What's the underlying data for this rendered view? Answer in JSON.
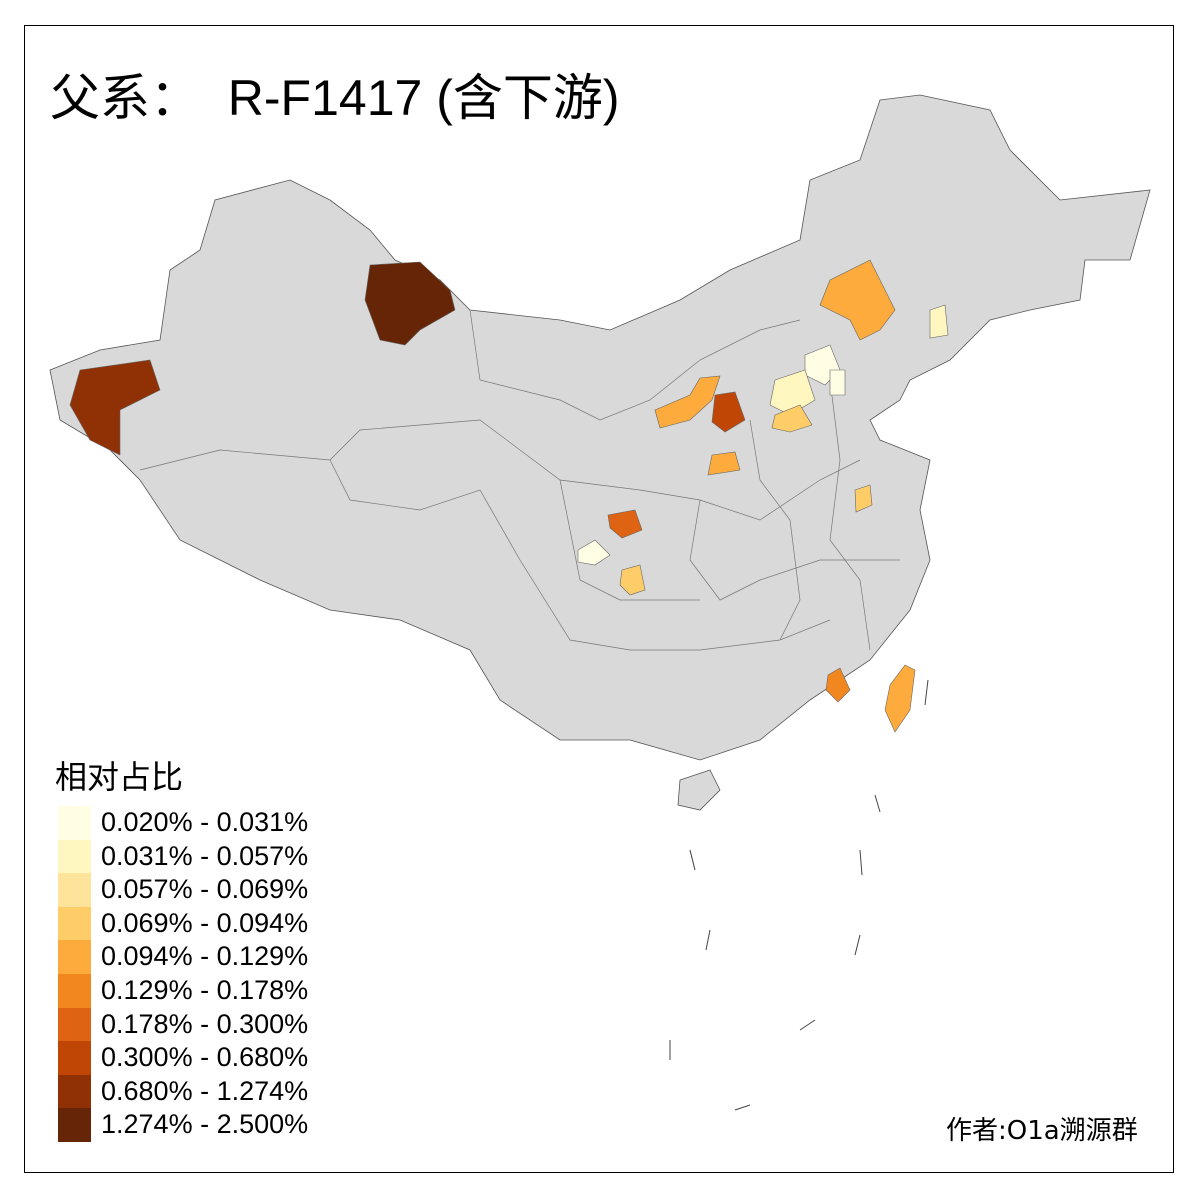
{
  "title": "父系：  R-F1417 (含下游)",
  "legend": {
    "title": "相对占比",
    "items": [
      {
        "label": "0.020% - 0.031%",
        "color": "#FFFDE4"
      },
      {
        "label": "0.031% - 0.057%",
        "color": "#FFF6C0"
      },
      {
        "label": "0.057% - 0.069%",
        "color": "#FEE49A"
      },
      {
        "label": "0.069% - 0.094%",
        "color": "#FECD68"
      },
      {
        "label": "0.094% - 0.129%",
        "color": "#FDAB3C"
      },
      {
        "label": "0.129% - 0.178%",
        "color": "#F2871F"
      },
      {
        "label": "0.178% - 0.300%",
        "color": "#DE6312"
      },
      {
        "label": "0.300% - 0.680%",
        "color": "#BF4604"
      },
      {
        "label": "0.680% - 1.274%",
        "color": "#8F3104"
      },
      {
        "label": "1.274% - 2.500%",
        "color": "#662506"
      }
    ]
  },
  "no_data_color": "#D9D9D9",
  "credit": "作者:O1a溯源群"
}
